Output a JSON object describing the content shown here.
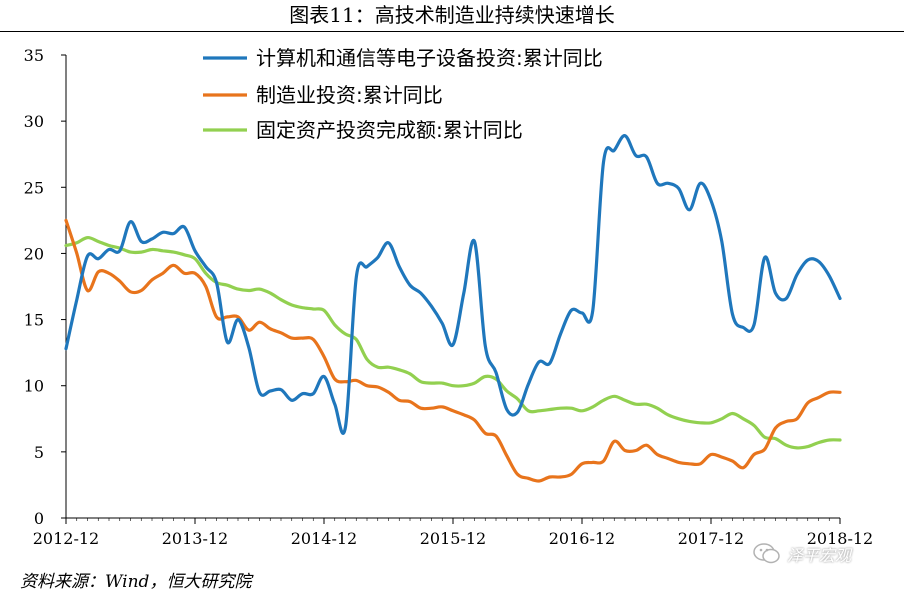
{
  "title": "图表11：高技术制造业持续快速增长",
  "source": "资料来源：Wind，恒大研究院",
  "watermark": "泽平宏观",
  "chart_data": {
    "type": "line",
    "ylim": [
      0,
      35
    ],
    "yticks": [
      0,
      5,
      10,
      15,
      20,
      25,
      30,
      35
    ],
    "xticks": [
      "2012-12",
      "2013-12",
      "2014-12",
      "2015-12",
      "2016-12",
      "2017-12",
      "2018-12"
    ],
    "x": [
      "2012-12",
      "2013-01",
      "2013-02",
      "2013-03",
      "2013-04",
      "2013-05",
      "2013-06",
      "2013-07",
      "2013-08",
      "2013-09",
      "2013-10",
      "2013-11",
      "2013-12",
      "2014-01",
      "2014-02",
      "2014-03",
      "2014-04",
      "2014-05",
      "2014-06",
      "2014-07",
      "2014-08",
      "2014-09",
      "2014-10",
      "2014-11",
      "2014-12",
      "2015-01",
      "2015-02",
      "2015-03",
      "2015-04",
      "2015-05",
      "2015-06",
      "2015-07",
      "2015-08",
      "2015-09",
      "2015-10",
      "2015-11",
      "2015-12",
      "2016-01",
      "2016-02",
      "2016-03",
      "2016-04",
      "2016-05",
      "2016-06",
      "2016-07",
      "2016-08",
      "2016-09",
      "2016-10",
      "2016-11",
      "2016-12",
      "2017-01",
      "2017-02",
      "2017-03",
      "2017-04",
      "2017-05",
      "2017-06",
      "2017-07",
      "2017-08",
      "2017-09",
      "2017-10",
      "2017-11",
      "2017-12",
      "2018-01",
      "2018-02",
      "2018-03",
      "2018-04",
      "2018-05",
      "2018-06",
      "2018-07",
      "2018-08",
      "2018-09",
      "2018-10",
      "2018-11",
      "2018-12"
    ],
    "legend_position": "top",
    "grid": false,
    "series": [
      {
        "name": "计算机和通信等电子设备投资:累计同比",
        "color": "#1f77bc",
        "values": [
          12.8,
          16.5,
          19.8,
          19.6,
          20.3,
          20.2,
          22.4,
          20.9,
          21.1,
          21.6,
          21.5,
          22.0,
          20.2,
          19.0,
          17.8,
          13.3,
          15.0,
          12.9,
          9.5,
          9.6,
          9.7,
          8.9,
          9.4,
          9.4,
          10.7,
          8.6,
          6.9,
          18.2,
          19.0,
          19.7,
          20.8,
          19.0,
          17.6,
          17.0,
          16.0,
          14.7,
          13.1,
          17.0,
          20.9,
          13.0,
          11.0,
          8.2,
          8.0,
          10.1,
          11.8,
          11.7,
          13.9,
          15.7,
          15.5,
          15.7,
          26.9,
          27.8,
          28.9,
          27.4,
          27.3,
          25.3,
          25.3,
          24.9,
          23.3,
          25.3,
          24.0,
          20.9,
          15.4,
          14.4,
          14.6,
          19.7,
          17.0,
          16.6,
          18.4,
          19.5,
          19.4,
          18.3,
          16.6
        ]
      },
      {
        "name": "制造业投资:累计同比",
        "color": "#e8741c",
        "values": [
          22.5,
          20.0,
          17.2,
          18.6,
          18.5,
          17.9,
          17.1,
          17.2,
          18.0,
          18.5,
          19.1,
          18.5,
          18.5,
          17.5,
          15.2,
          15.2,
          15.2,
          14.2,
          14.8,
          14.3,
          14.0,
          13.6,
          13.6,
          13.5,
          12.2,
          10.5,
          10.3,
          10.4,
          10.0,
          9.9,
          9.5,
          8.9,
          8.8,
          8.3,
          8.3,
          8.4,
          8.1,
          7.8,
          7.4,
          6.4,
          6.2,
          4.7,
          3.3,
          3.0,
          2.8,
          3.1,
          3.1,
          3.3,
          4.1,
          4.2,
          4.3,
          5.8,
          5.1,
          5.1,
          5.5,
          4.8,
          4.5,
          4.2,
          4.1,
          4.1,
          4.8,
          4.6,
          4.3,
          3.8,
          4.8,
          5.2,
          6.8,
          7.3,
          7.5,
          8.7,
          9.1,
          9.5,
          9.5
        ]
      },
      {
        "name": "固定资产投资完成额:累计同比",
        "color": "#92d050",
        "values": [
          20.6,
          20.8,
          21.2,
          20.9,
          20.6,
          20.4,
          20.1,
          20.1,
          20.3,
          20.2,
          20.1,
          19.9,
          19.6,
          18.5,
          17.8,
          17.6,
          17.3,
          17.2,
          17.3,
          17.0,
          16.5,
          16.1,
          15.9,
          15.8,
          15.7,
          14.6,
          13.9,
          13.5,
          12.0,
          11.4,
          11.4,
          11.2,
          10.9,
          10.3,
          10.2,
          10.2,
          10.0,
          10.0,
          10.2,
          10.7,
          10.5,
          9.6,
          9.0,
          8.1,
          8.1,
          8.2,
          8.3,
          8.3,
          8.1,
          8.4,
          8.9,
          9.2,
          8.9,
          8.6,
          8.6,
          8.3,
          7.8,
          7.5,
          7.3,
          7.2,
          7.2,
          7.5,
          7.9,
          7.5,
          7.0,
          6.1,
          6.0,
          5.5,
          5.3,
          5.4,
          5.7,
          5.9,
          5.9
        ]
      }
    ]
  }
}
